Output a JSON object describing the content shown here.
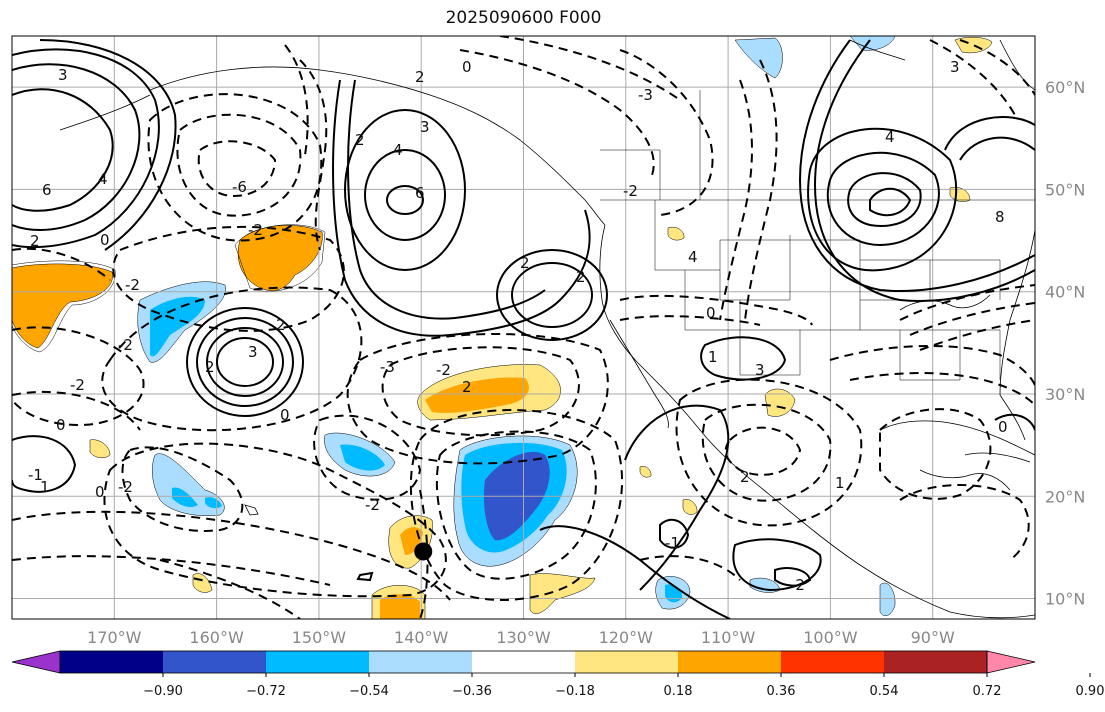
{
  "title": "2025090600 F000",
  "lat_labels": [
    {
      "value": 60,
      "text": "60°N"
    },
    {
      "value": 50,
      "text": "50°N"
    },
    {
      "value": 40,
      "text": "40°N"
    },
    {
      "value": 30,
      "text": "30°N"
    },
    {
      "value": 20,
      "text": "20°N"
    },
    {
      "value": 10,
      "text": "10°N"
    }
  ],
  "lon_labels": [
    {
      "value": -170,
      "text": "170°W"
    },
    {
      "value": -160,
      "text": "160°W"
    },
    {
      "value": -150,
      "text": "150°W"
    },
    {
      "value": -140,
      "text": "140°W"
    },
    {
      "value": -130,
      "text": "130°W"
    },
    {
      "value": -120,
      "text": "120°W"
    },
    {
      "value": -110,
      "text": "110°W"
    },
    {
      "value": -100,
      "text": "100°W"
    },
    {
      "value": -90,
      "text": "90°W"
    }
  ],
  "extent": {
    "lon_min": -180,
    "lon_max": -80,
    "lat_min": 8,
    "lat_max": 65
  },
  "colorbar": {
    "colors": [
      "#9933cc",
      "#000088",
      "#3355cc",
      "#00bbff",
      "#aaddff",
      "#ffffff",
      "#ffe680",
      "#ffa500",
      "#ff3300",
      "#aa2222",
      "#ff88aa"
    ],
    "tick_labels": [
      "−0.90",
      "−0.72",
      "−0.54",
      "−0.36",
      "−0.18",
      "0.18",
      "0.36",
      "0.54",
      "0.72",
      "0.90"
    ]
  },
  "contour_labels": [
    "3",
    "0",
    "6",
    "2",
    "4",
    "2",
    "-2",
    "0",
    "2",
    "3",
    "4",
    "6",
    "-6",
    "-2",
    "2",
    "2",
    "4",
    "-2",
    "-3",
    "-2",
    "0",
    "2",
    "3",
    "2",
    "-2",
    "-3",
    "0",
    "3",
    "-2",
    "2",
    "1",
    "0",
    "1",
    "-1",
    "0",
    "-2",
    "-2",
    "-1",
    "2",
    "1",
    "-2",
    "8",
    "4",
    "3",
    "0"
  ],
  "storm_marker": {
    "lon": -139.8,
    "lat": 14.6
  }
}
